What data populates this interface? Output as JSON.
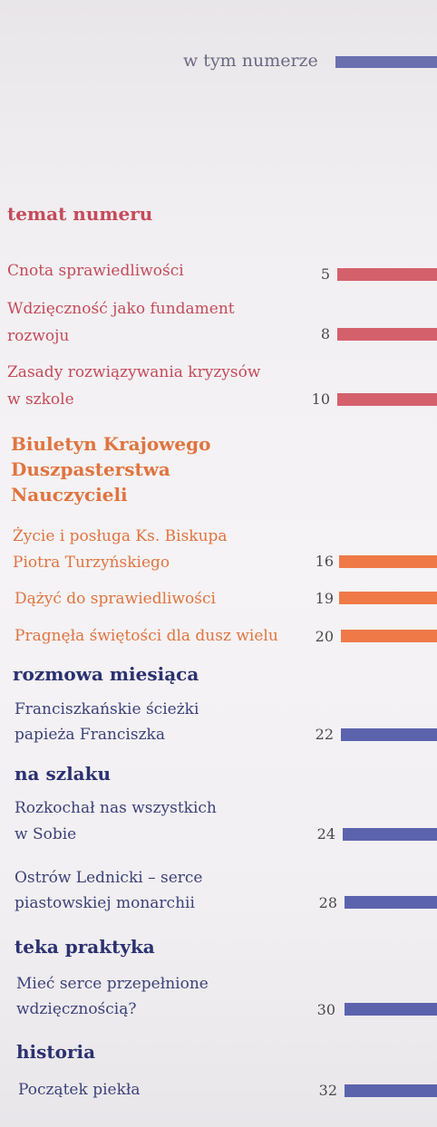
{
  "header": {
    "label": "w tym numerze",
    "color": "#6a6fb0"
  },
  "sections": [
    {
      "title": "temat numeru",
      "color": "#c44b5a",
      "items": [
        {
          "lines": [
            "Cnota sprawiedliwości"
          ],
          "page": "5"
        },
        {
          "lines": [
            "Wdzięczność jako fundament",
            "rozwoju"
          ],
          "page": "8"
        },
        {
          "lines": [
            "Zasady rozwiązywania kryzysów",
            "w szkole"
          ],
          "page": "10"
        }
      ]
    },
    {
      "title_lines": [
        "Biuletyn Krajowego",
        "Duszpasterstwa",
        "Nauczycieli"
      ],
      "color": "#e07440",
      "items": [
        {
          "lines": [
            "Życie i posługa Ks. Biskupa",
            "Piotra Turzyńskiego"
          ],
          "page": "16"
        },
        {
          "lines": [
            "Dążyć do sprawiedliwości"
          ],
          "page": "19"
        },
        {
          "lines": [
            "Pragnęła świętości dla dusz wielu"
          ],
          "page": "20"
        }
      ]
    },
    {
      "title": "rozmowa miesiąca",
      "color": "#2b3170",
      "items": [
        {
          "lines": [
            "Franciszkańskie ścieżki",
            "papieża Franciszka"
          ],
          "page": "22"
        }
      ]
    },
    {
      "title": "na szlaku",
      "color": "#2b3170",
      "items": [
        {
          "lines": [
            "Rozkochał nas wszystkich",
            "w Sobie"
          ],
          "page": "24"
        },
        {
          "lines": [
            "Ostrów Lednicki – serce",
            "piastowskiej monarchii"
          ],
          "page": "28"
        }
      ]
    },
    {
      "title": "teka praktyka",
      "color": "#2b3170",
      "items": [
        {
          "lines": [
            "Mieć serce przepełnione",
            "wdzięcznością?"
          ],
          "page": "30"
        }
      ]
    },
    {
      "title": "historia",
      "color": "#2b3170",
      "items": [
        {
          "lines": [
            "Początek piekła"
          ],
          "page": "32"
        }
      ]
    }
  ],
  "colors": {
    "red_text": "#c44b5a",
    "red_bar": "#d4606c",
    "orange_text": "#e07440",
    "orange_bar": "#ef7a48",
    "navy_title": "#2b3170",
    "navy_text": "#3c427a",
    "blue_bar": "#5c63ad",
    "page_number": "#4a4a4a"
  }
}
